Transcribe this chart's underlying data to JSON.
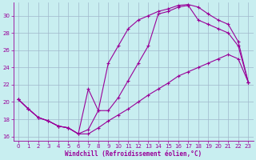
{
  "xlabel": "Windchill (Refroidissement éolien,°C)",
  "background_color": "#c8eef0",
  "line_color": "#990099",
  "grid_color": "#a0b8cc",
  "xlim": [
    -0.5,
    23.5
  ],
  "ylim": [
    15.5,
    31.5
  ],
  "xticks": [
    0,
    1,
    2,
    3,
    4,
    5,
    6,
    7,
    8,
    9,
    10,
    11,
    12,
    13,
    14,
    15,
    16,
    17,
    18,
    19,
    20,
    21,
    22,
    23
  ],
  "yticks": [
    16,
    18,
    20,
    22,
    24,
    26,
    28,
    30
  ],
  "line1_x": [
    0,
    1,
    2,
    3,
    4,
    5,
    6,
    7,
    8,
    9,
    10,
    11,
    12,
    13,
    14,
    15,
    16,
    17,
    18,
    19,
    20,
    21,
    22,
    23
  ],
  "line1_y": [
    20.3,
    19.2,
    18.2,
    17.8,
    17.2,
    17.0,
    16.3,
    16.3,
    17.0,
    17.8,
    18.5,
    19.2,
    20.0,
    20.8,
    21.5,
    22.2,
    23.0,
    23.5,
    24.0,
    24.5,
    25.0,
    25.5,
    25.0,
    22.3
  ],
  "line2_x": [
    0,
    1,
    2,
    3,
    4,
    5,
    6,
    7,
    8,
    9,
    10,
    11,
    12,
    13,
    14,
    15,
    16,
    17,
    18,
    19,
    20,
    21,
    22,
    23
  ],
  "line2_y": [
    20.3,
    19.2,
    18.2,
    17.8,
    17.2,
    17.0,
    16.3,
    16.8,
    19.0,
    24.5,
    26.5,
    28.5,
    29.5,
    30.0,
    30.5,
    30.8,
    31.2,
    31.3,
    31.0,
    30.2,
    29.5,
    29.0,
    27.0,
    22.3
  ],
  "line3_x": [
    0,
    1,
    2,
    3,
    4,
    5,
    6,
    7,
    8,
    9,
    10,
    11,
    12,
    13,
    14,
    15,
    16,
    17,
    18,
    19,
    20,
    21,
    22,
    23
  ],
  "line3_y": [
    20.3,
    19.2,
    18.2,
    17.8,
    17.2,
    17.0,
    16.3,
    21.5,
    19.0,
    19.0,
    20.5,
    22.5,
    24.5,
    26.5,
    30.2,
    30.5,
    31.0,
    31.2,
    29.5,
    29.0,
    28.5,
    28.0,
    26.5,
    22.3
  ]
}
